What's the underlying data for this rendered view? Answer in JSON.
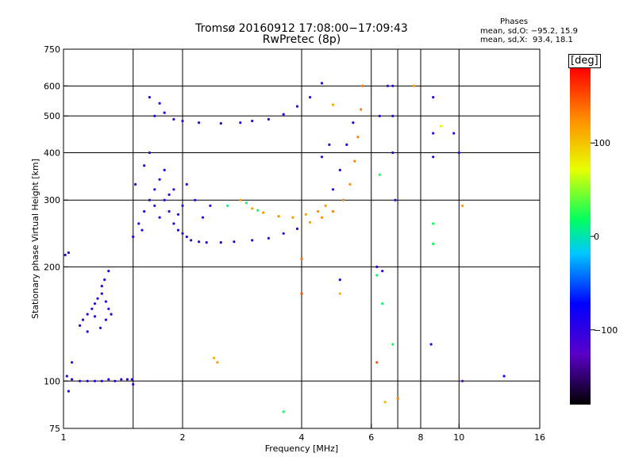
{
  "header": {
    "title_line1": "Tromsø 20160912 17:08:00−17:09:43",
    "title_line2": "RwPretec (8p)"
  },
  "stats": {
    "heading": "Phases",
    "line_o": "mean, sd,O: −95.2, 15.9",
    "line_x": "mean, sd,X:  93.4, 18.1"
  },
  "colorbar": {
    "unit": "[deg]",
    "ticks": [
      {
        "value": 100,
        "label": "100"
      },
      {
        "value": 0,
        "label": "0"
      },
      {
        "value": -100,
        "label": "−100"
      }
    ],
    "range": [
      -180,
      180
    ]
  },
  "chart_data": {
    "type": "scatter",
    "title": "Tromsø 20160912 17:08:00−17:09:43",
    "subtitle": "RwPretec (8p)",
    "xlabel": "Frequency [MHz]",
    "ylabel": "Stationary phase Virtual Height [km]",
    "xscale": "log",
    "yscale": "log",
    "xlim": [
      1,
      16
    ],
    "ylim": [
      75,
      750
    ],
    "xticks": [
      1,
      2,
      4,
      6,
      8,
      10,
      16
    ],
    "xtick_labels": [
      "1",
      "2",
      "4",
      "6",
      "8",
      "10",
      "16"
    ],
    "xgrid": [
      1.5,
      2,
      4,
      6,
      7,
      8,
      10
    ],
    "yticks": [
      75,
      100,
      200,
      300,
      400,
      500,
      600,
      750
    ],
    "ytick_labels": [
      "75",
      "100",
      "200",
      "300",
      "400",
      "500",
      "600",
      "750"
    ],
    "ygrid": [
      100,
      200,
      300,
      400,
      500,
      600
    ],
    "grid": true,
    "color_label": "Phase [deg]",
    "series": [
      {
        "values": [
          [
            1.02,
            103,
            -100
          ],
          [
            1.05,
            101,
            -100
          ],
          [
            1.1,
            100,
            -100
          ],
          [
            1.15,
            100,
            -100
          ],
          [
            1.2,
            100,
            -100
          ],
          [
            1.25,
            100,
            -100
          ],
          [
            1.3,
            101,
            -100
          ],
          [
            1.35,
            100,
            -100
          ],
          [
            1.4,
            101,
            -100
          ],
          [
            1.45,
            101,
            -100
          ],
          [
            1.49,
            101,
            -100
          ],
          [
            1.5,
            98,
            -105
          ],
          [
            1.01,
            215,
            -100
          ],
          [
            1.03,
            218,
            -100
          ],
          [
            1.05,
            112,
            -110
          ],
          [
            1.03,
            94,
            -100
          ]
        ]
      },
      {
        "values": [
          [
            1.1,
            140,
            -100
          ],
          [
            1.12,
            145,
            -100
          ],
          [
            1.15,
            150,
            -100
          ],
          [
            1.18,
            155,
            -100
          ],
          [
            1.2,
            160,
            -100
          ],
          [
            1.22,
            165,
            -100
          ],
          [
            1.25,
            170,
            -100
          ],
          [
            1.28,
            162,
            -100
          ],
          [
            1.3,
            155,
            -100
          ],
          [
            1.32,
            150,
            -100
          ],
          [
            1.25,
            178,
            -100
          ],
          [
            1.27,
            185,
            -100
          ],
          [
            1.3,
            195,
            -100
          ],
          [
            1.15,
            135,
            -100
          ],
          [
            1.2,
            148,
            -100
          ],
          [
            1.28,
            145,
            -105
          ],
          [
            1.24,
            138,
            -100
          ]
        ]
      },
      {
        "values": [
          [
            1.5,
            240,
            -100
          ],
          [
            1.55,
            260,
            -100
          ],
          [
            1.6,
            280,
            -100
          ],
          [
            1.65,
            300,
            -100
          ],
          [
            1.7,
            320,
            -100
          ],
          [
            1.75,
            340,
            -100
          ],
          [
            1.8,
            300,
            -100
          ],
          [
            1.85,
            280,
            -100
          ],
          [
            1.9,
            260,
            -100
          ],
          [
            1.95,
            250,
            -100
          ],
          [
            2.0,
            245,
            -100
          ],
          [
            2.05,
            240,
            -100
          ],
          [
            2.1,
            235,
            -100
          ],
          [
            2.2,
            233,
            -100
          ],
          [
            2.3,
            232,
            -100
          ],
          [
            2.5,
            232,
            -100
          ],
          [
            2.7,
            233,
            -100
          ],
          [
            3.0,
            235,
            -100
          ],
          [
            3.3,
            238,
            -100
          ],
          [
            3.6,
            245,
            -100
          ],
          [
            3.9,
            252,
            -95
          ],
          [
            4.2,
            262,
            120
          ],
          [
            4.5,
            270,
            125
          ],
          [
            4.8,
            280,
            130
          ],
          [
            5.1,
            300,
            130
          ],
          [
            5.3,
            330,
            125
          ],
          [
            5.45,
            380,
            130
          ],
          [
            5.55,
            440,
            130
          ],
          [
            5.65,
            520,
            130
          ],
          [
            5.7,
            600,
            135
          ],
          [
            1.52,
            330,
            -100
          ],
          [
            1.6,
            370,
            -100
          ],
          [
            1.7,
            290,
            -100
          ],
          [
            1.8,
            360,
            -100
          ],
          [
            1.9,
            320,
            -100
          ],
          [
            2.0,
            290,
            -100
          ],
          [
            2.05,
            330,
            -100
          ],
          [
            2.15,
            300,
            -100
          ],
          [
            2.25,
            270,
            -100
          ],
          [
            2.35,
            290,
            -100
          ],
          [
            1.65,
            400,
            -100
          ],
          [
            1.58,
            250,
            -100
          ],
          [
            1.75,
            270,
            -95
          ],
          [
            1.85,
            310,
            -100
          ],
          [
            1.95,
            275,
            -100
          ]
        ]
      },
      {
        "values": [
          [
            1.7,
            500,
            -100
          ],
          [
            1.8,
            510,
            -100
          ],
          [
            1.9,
            490,
            -100
          ],
          [
            2.0,
            485,
            -100
          ],
          [
            2.2,
            480,
            -100
          ],
          [
            2.5,
            478,
            -100
          ],
          [
            2.8,
            480,
            -100
          ],
          [
            3.0,
            485,
            -100
          ],
          [
            3.3,
            490,
            -100
          ],
          [
            3.6,
            505,
            -100
          ],
          [
            3.9,
            530,
            -100
          ],
          [
            4.2,
            560,
            -100
          ],
          [
            4.5,
            610,
            -100
          ],
          [
            1.65,
            560,
            -100
          ],
          [
            1.75,
            540,
            -100
          ]
        ]
      },
      {
        "values": [
          [
            2.8,
            300,
            120
          ],
          [
            3.0,
            285,
            115
          ],
          [
            3.2,
            278,
            120
          ],
          [
            3.5,
            272,
            125
          ],
          [
            3.8,
            270,
            120
          ],
          [
            4.1,
            275,
            115
          ],
          [
            4.4,
            280,
            125
          ],
          [
            4.6,
            290,
            120
          ],
          [
            4.8,
            320,
            -100
          ],
          [
            5.0,
            360,
            -100
          ],
          [
            5.2,
            420,
            -100
          ],
          [
            5.4,
            480,
            -100
          ],
          [
            4.5,
            390,
            -100
          ],
          [
            4.7,
            420,
            -100
          ],
          [
            2.9,
            295,
            20
          ],
          [
            3.1,
            282,
            20
          ],
          [
            2.6,
            290,
            15
          ],
          [
            2.4,
            115,
            110
          ],
          [
            2.45,
            112,
            120
          ]
        ]
      },
      {
        "values": [
          [
            6.3,
            500,
            -100
          ],
          [
            6.3,
            350,
            20
          ],
          [
            6.6,
            600,
            -100
          ],
          [
            6.8,
            600,
            -100
          ],
          [
            6.8,
            500,
            -100
          ],
          [
            6.8,
            400,
            -100
          ],
          [
            6.9,
            300,
            -100
          ],
          [
            7.7,
            600,
            120
          ],
          [
            8.6,
            560,
            -100
          ],
          [
            8.6,
            450,
            -100
          ],
          [
            8.6,
            390,
            -100
          ],
          [
            8.6,
            260,
            20
          ],
          [
            8.6,
            230,
            20
          ],
          [
            9.0,
            470,
            80
          ],
          [
            9.7,
            450,
            -100
          ],
          [
            10.0,
            400,
            -100
          ],
          [
            10.2,
            100,
            -120
          ],
          [
            13.0,
            103,
            -100
          ],
          [
            6.2,
            190,
            20
          ],
          [
            6.4,
            160,
            20
          ],
          [
            6.8,
            125,
            20
          ],
          [
            8.5,
            125,
            -100
          ],
          [
            6.2,
            200,
            -100
          ],
          [
            4.0,
            210,
            140
          ],
          [
            4.0,
            170,
            150
          ],
          [
            5.0,
            185,
            -100
          ],
          [
            5.0,
            170,
            110
          ],
          [
            6.2,
            112,
            150
          ],
          [
            7.0,
            90,
            130
          ],
          [
            3.6,
            83,
            20
          ],
          [
            6.5,
            88,
            110
          ],
          [
            4.8,
            535,
            110
          ],
          [
            6.4,
            195,
            -110
          ],
          [
            10.2,
            290,
            120
          ]
        ]
      }
    ]
  }
}
